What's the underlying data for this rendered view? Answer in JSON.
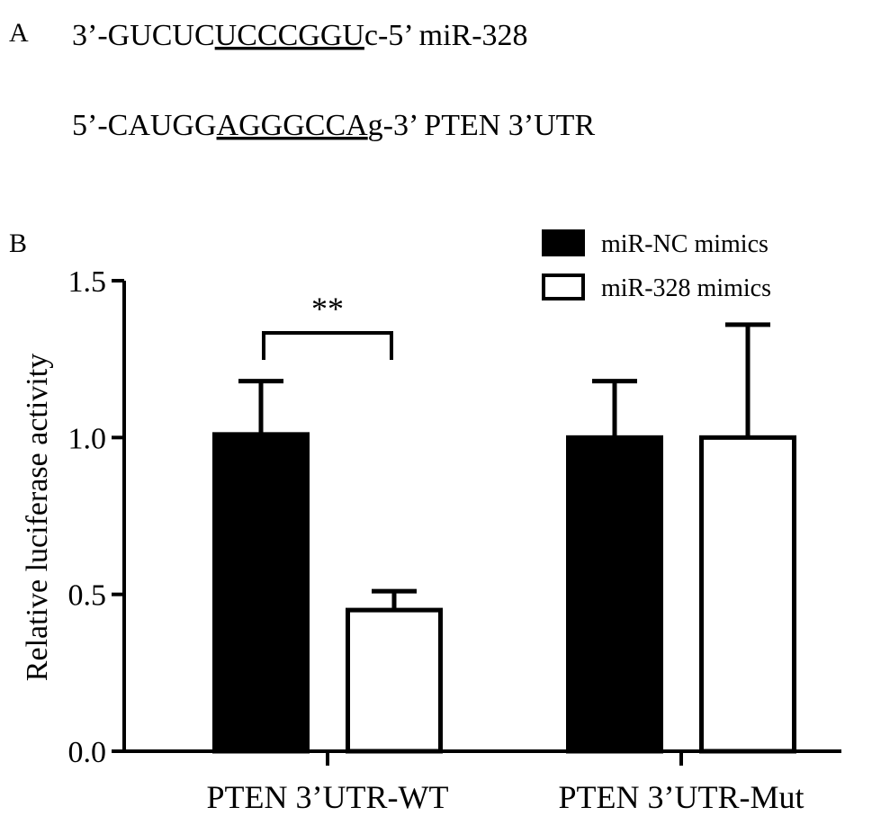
{
  "panel_a": {
    "label": "A",
    "lines": [
      {
        "prefix": "3’-GUCUC",
        "underlined": "UCCCGGU",
        "suffix": "c-5’ miR-328"
      },
      {
        "prefix": "5’-CAUGG",
        "underlined": "AGGGCCA",
        "suffix": "g-3’ PTEN 3’UTR"
      }
    ]
  },
  "chart_data": {
    "type": "bar",
    "panel_label": "B",
    "y_label": "Relative luciferase activity",
    "categories": [
      "PTEN 3’UTR-WT",
      "PTEN 3’UTR-Mut"
    ],
    "series": [
      {
        "name": "miR-NC mimics",
        "color": "#000000",
        "values": [
          1.01,
          1.0
        ],
        "errors": [
          0.17,
          0.18
        ]
      },
      {
        "name": "miR-328 mimics",
        "color": "#ffffff",
        "values": [
          0.45,
          1.0
        ],
        "errors": [
          0.06,
          0.36
        ]
      }
    ],
    "ylim": [
      0,
      1.5
    ],
    "yticks": [
      {
        "value": 0,
        "label": "0.0"
      },
      0.5,
      {
        "value": 1,
        "label": "1.0"
      },
      {
        "value": 1.5,
        "label": "1.5"
      }
    ],
    "annotation": "**",
    "legend": "upper right"
  }
}
